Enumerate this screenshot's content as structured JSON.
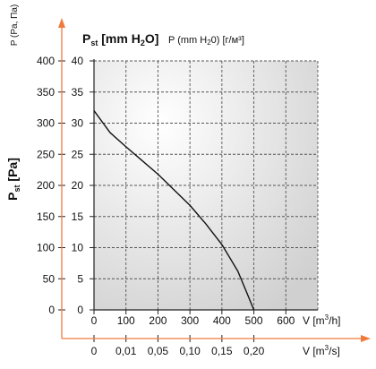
{
  "chart_data": {
    "type": "line",
    "y_axes": {
      "pa": {
        "label_main": "P",
        "label_sub": "st",
        "label_unit": " [Pa]",
        "alt_label": "P (Pa, Па)",
        "ticks": [
          0,
          50,
          100,
          150,
          200,
          250,
          300,
          350,
          400
        ]
      },
      "mmh2o": {
        "label_main": "P",
        "label_sub": "st",
        "label_unit_a": " [mm H",
        "label_unit_b": "2",
        "label_unit_c": "O]",
        "alt_label_a": "P (mm H",
        "alt_label_b": "2",
        "alt_label_c": "0) [г/м³]",
        "ticks": [
          0,
          5,
          10,
          15,
          20,
          25,
          30,
          35,
          40
        ]
      },
      "ylim_pa": [
        0,
        400
      ]
    },
    "x_axes": {
      "m3h": {
        "label_a": "V [m",
        "label_b": "3",
        "label_c": "/h]",
        "ticks": [
          0,
          100,
          200,
          300,
          400,
          500,
          600
        ],
        "xlim": [
          0,
          700
        ]
      },
      "m3s": {
        "label_a": "V [m",
        "label_b": "3",
        "label_c": "/s]",
        "tick_labels": [
          "0",
          "0,01",
          "0,05",
          "0,10",
          "0,15",
          "0,20"
        ]
      }
    },
    "series": [
      {
        "x": [
          0,
          50,
          100,
          150,
          200,
          250,
          300,
          350,
          400,
          450,
          480,
          500
        ],
        "y": [
          320,
          285,
          262,
          240,
          218,
          193,
          168,
          138,
          105,
          62,
          25,
          0
        ]
      }
    ],
    "grid": true
  }
}
